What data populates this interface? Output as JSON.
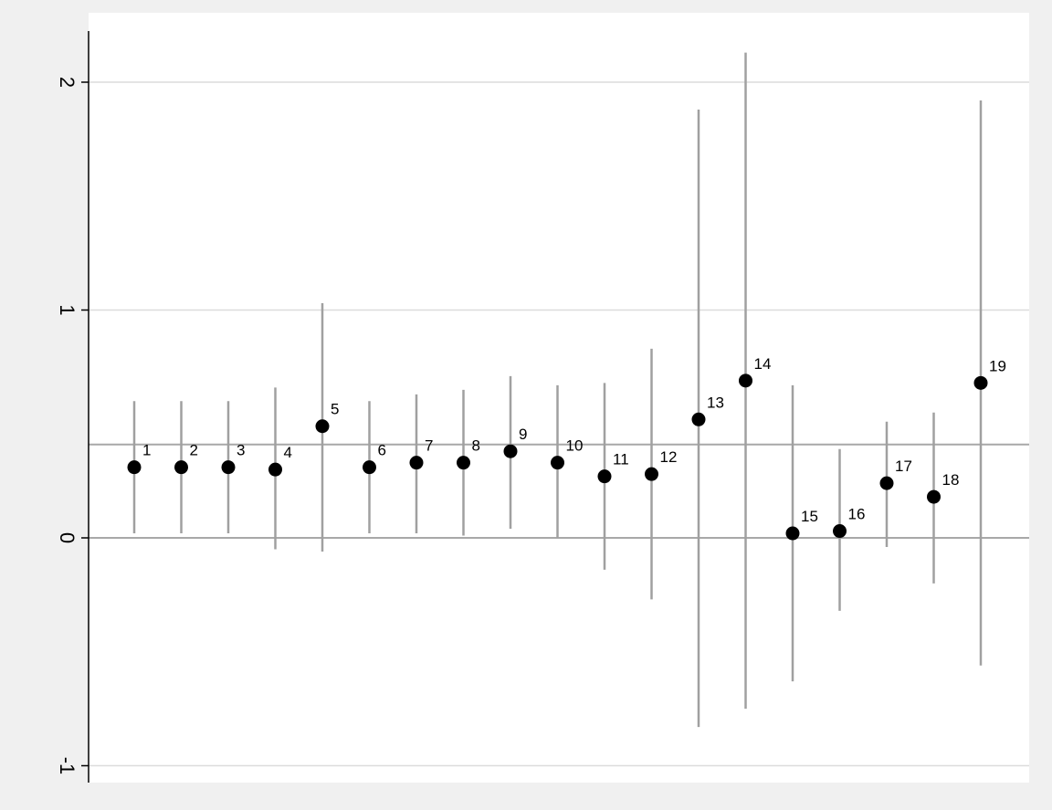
{
  "chart_data": {
    "type": "scatter",
    "title": "",
    "xlabel": "",
    "ylabel": "",
    "ylim": [
      -1.1,
      2.2
    ],
    "yticks": [
      -1,
      0,
      1,
      2
    ],
    "ytick_labels": [
      "-1",
      "0",
      "1",
      "2"
    ],
    "reference_lines": [
      0,
      0.41
    ],
    "grid": true,
    "points": [
      {
        "label": "1",
        "x": 1,
        "y": 0.31,
        "lo": 0.02,
        "hi": 0.6
      },
      {
        "label": "2",
        "x": 2,
        "y": 0.31,
        "lo": 0.02,
        "hi": 0.6
      },
      {
        "label": "3",
        "x": 3,
        "y": 0.31,
        "lo": 0.02,
        "hi": 0.6
      },
      {
        "label": "4",
        "x": 4,
        "y": 0.3,
        "lo": -0.05,
        "hi": 0.66
      },
      {
        "label": "5",
        "x": 5,
        "y": 0.49,
        "lo": -0.06,
        "hi": 1.03
      },
      {
        "label": "6",
        "x": 6,
        "y": 0.31,
        "lo": 0.02,
        "hi": 0.6
      },
      {
        "label": "7",
        "x": 7,
        "y": 0.33,
        "lo": 0.02,
        "hi": 0.63
      },
      {
        "label": "8",
        "x": 8,
        "y": 0.33,
        "lo": 0.01,
        "hi": 0.65
      },
      {
        "label": "9",
        "x": 9,
        "y": 0.38,
        "lo": 0.04,
        "hi": 0.71
      },
      {
        "label": "10",
        "x": 10,
        "y": 0.33,
        "lo": 0.0,
        "hi": 0.67
      },
      {
        "label": "11",
        "x": 11,
        "y": 0.27,
        "lo": -0.14,
        "hi": 0.68
      },
      {
        "label": "12",
        "x": 12,
        "y": 0.28,
        "lo": -0.27,
        "hi": 0.83
      },
      {
        "label": "13",
        "x": 13,
        "y": 0.52,
        "lo": -0.83,
        "hi": 1.88
      },
      {
        "label": "14",
        "x": 14,
        "y": 0.69,
        "lo": -0.75,
        "hi": 2.13
      },
      {
        "label": "15",
        "x": 15,
        "y": 0.02,
        "lo": -0.63,
        "hi": 0.67
      },
      {
        "label": "16",
        "x": 16,
        "y": 0.03,
        "lo": -0.32,
        "hi": 0.39
      },
      {
        "label": "17",
        "x": 17,
        "y": 0.24,
        "lo": -0.04,
        "hi": 0.51
      },
      {
        "label": "18",
        "x": 18,
        "y": 0.18,
        "lo": -0.2,
        "hi": 0.55
      },
      {
        "label": "19",
        "x": 19,
        "y": 0.68,
        "lo": -0.56,
        "hi": 1.92
      }
    ],
    "colors": {
      "outer_background": "#f0f0f0",
      "plot_background": "#ffffff",
      "gridline": "#dcdcdc",
      "reference_line": "#a8a8a8",
      "error_bar": "#a0a0a0",
      "marker": "#000000",
      "axis": "#000000"
    }
  }
}
